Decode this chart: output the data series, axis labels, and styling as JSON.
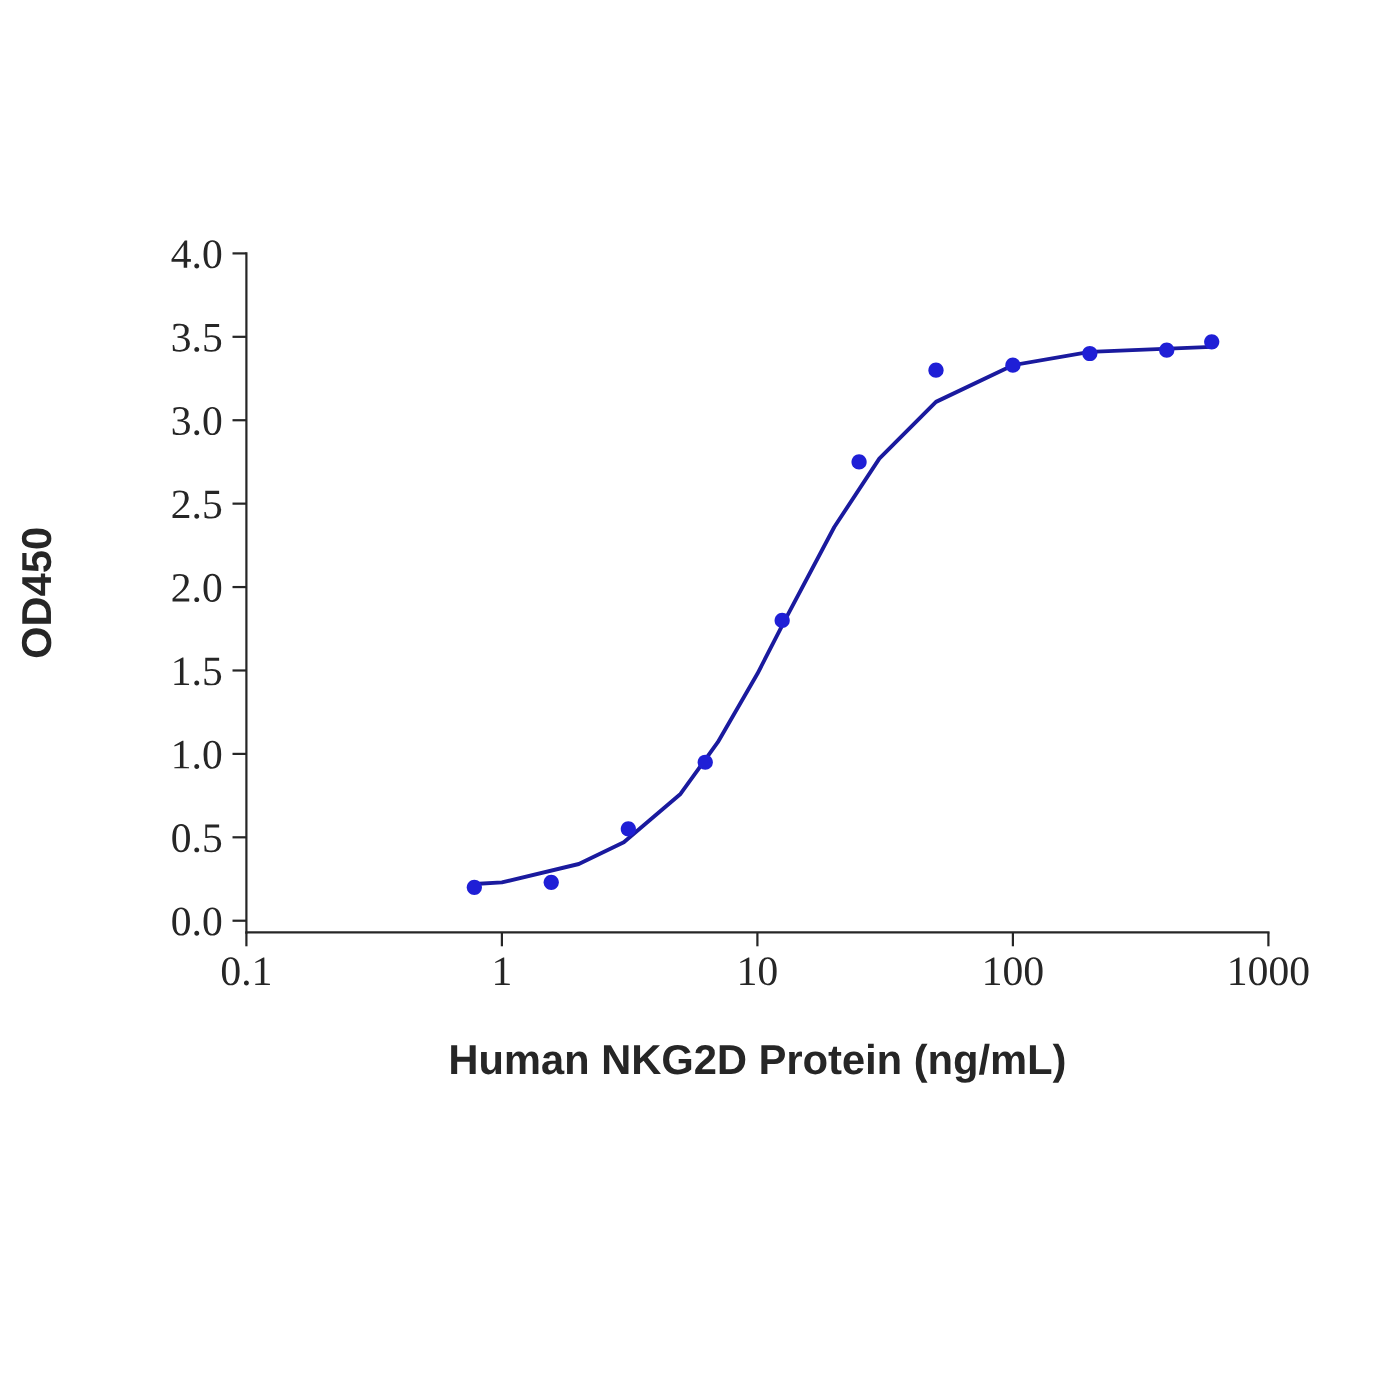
{
  "chart_data": {
    "type": "scatter",
    "xlabel": "Human NKG2D Protein (ng/mL)",
    "ylabel": "OD450",
    "log": "x",
    "xlim": [
      0.1,
      1000
    ],
    "xticks": [
      0.1,
      1,
      10,
      100,
      1000
    ],
    "ylim": [
      -0.07,
      4.0
    ],
    "yticks": [
      {
        "value": 0,
        "label": "0.0"
      },
      0.5,
      {
        "value": 1,
        "label": "1.0"
      },
      1.5,
      {
        "value": 2,
        "label": "2.0"
      },
      2.5,
      {
        "value": 3,
        "label": "3.0"
      },
      3.5,
      {
        "value": 4,
        "label": "4.0"
      }
    ],
    "grid": false,
    "series": [
      {
        "marker": "circle",
        "color": "#1f1fd6",
        "x": [
          0.78,
          1.56,
          3.125,
          6.25,
          12.5,
          25,
          50,
          100,
          200,
          400,
          600
        ],
        "values": [
          0.2,
          0.23,
          0.55,
          0.95,
          1.8,
          2.75,
          3.3,
          3.33,
          3.4,
          3.42,
          3.47
        ]
      },
      {
        "type": "line",
        "marker": "none",
        "color": "#1a1a9e",
        "line_style": "solid",
        "x": [
          0.78,
          1,
          2,
          3,
          5,
          7,
          10,
          13,
          20,
          30,
          50,
          100,
          200,
          600
        ],
        "values": [
          0.22,
          0.23,
          0.34,
          0.47,
          0.76,
          1.07,
          1.48,
          1.82,
          2.36,
          2.77,
          3.11,
          3.33,
          3.41,
          3.44
        ]
      }
    ]
  }
}
